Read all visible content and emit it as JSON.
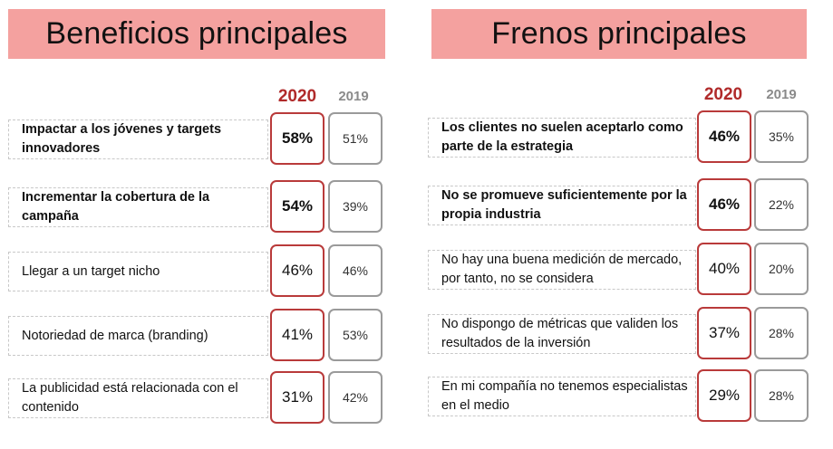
{
  "chart_data": [
    {
      "type": "table",
      "title": "Beneficios principales",
      "column_headers": [
        "2020",
        "2019"
      ],
      "rows": [
        {
          "label": "Impactar a los jóvenes y targets innovadores",
          "v2020": "58%",
          "v2019": "51%",
          "bold": true
        },
        {
          "label": "Incrementar la cobertura de la campaña",
          "v2020": "54%",
          "v2019": "39%",
          "bold": true
        },
        {
          "label": "Llegar a un target nicho",
          "v2020": "46%",
          "v2019": "46%",
          "bold": false
        },
        {
          "label": "Notoriedad de marca (branding)",
          "v2020": "41%",
          "v2019": "53%",
          "bold": false
        },
        {
          "label": "La publicidad está relacionada con el contenido",
          "v2020": "31%",
          "v2019": "42%",
          "bold": false
        }
      ]
    },
    {
      "type": "table",
      "title": "Frenos principales",
      "column_headers": [
        "2020",
        "2019"
      ],
      "rows": [
        {
          "label": "Los clientes no suelen aceptarlo como parte de la estrategia",
          "v2020": "46%",
          "v2019": "35%",
          "bold": true
        },
        {
          "label": "No se promueve suficientemente por la propia industria",
          "v2020": "46%",
          "v2019": "22%",
          "bold": true
        },
        {
          "label": "No hay una buena medición de mercado, por tanto, no se considera",
          "v2020": "40%",
          "v2019": "20%",
          "bold": false
        },
        {
          "label": "No dispongo de métricas que validen los resultados de la inversión",
          "v2020": "37%",
          "v2019": "28%",
          "bold": false
        },
        {
          "label": "En mi compañía no tenemos especialistas en el medio",
          "v2020": "29%",
          "v2019": "28%",
          "bold": false
        }
      ]
    }
  ],
  "colors": {
    "banner": "#f4a19f",
    "accent_2020": "#b02a2a",
    "muted_2019": "#8a8a8a"
  }
}
